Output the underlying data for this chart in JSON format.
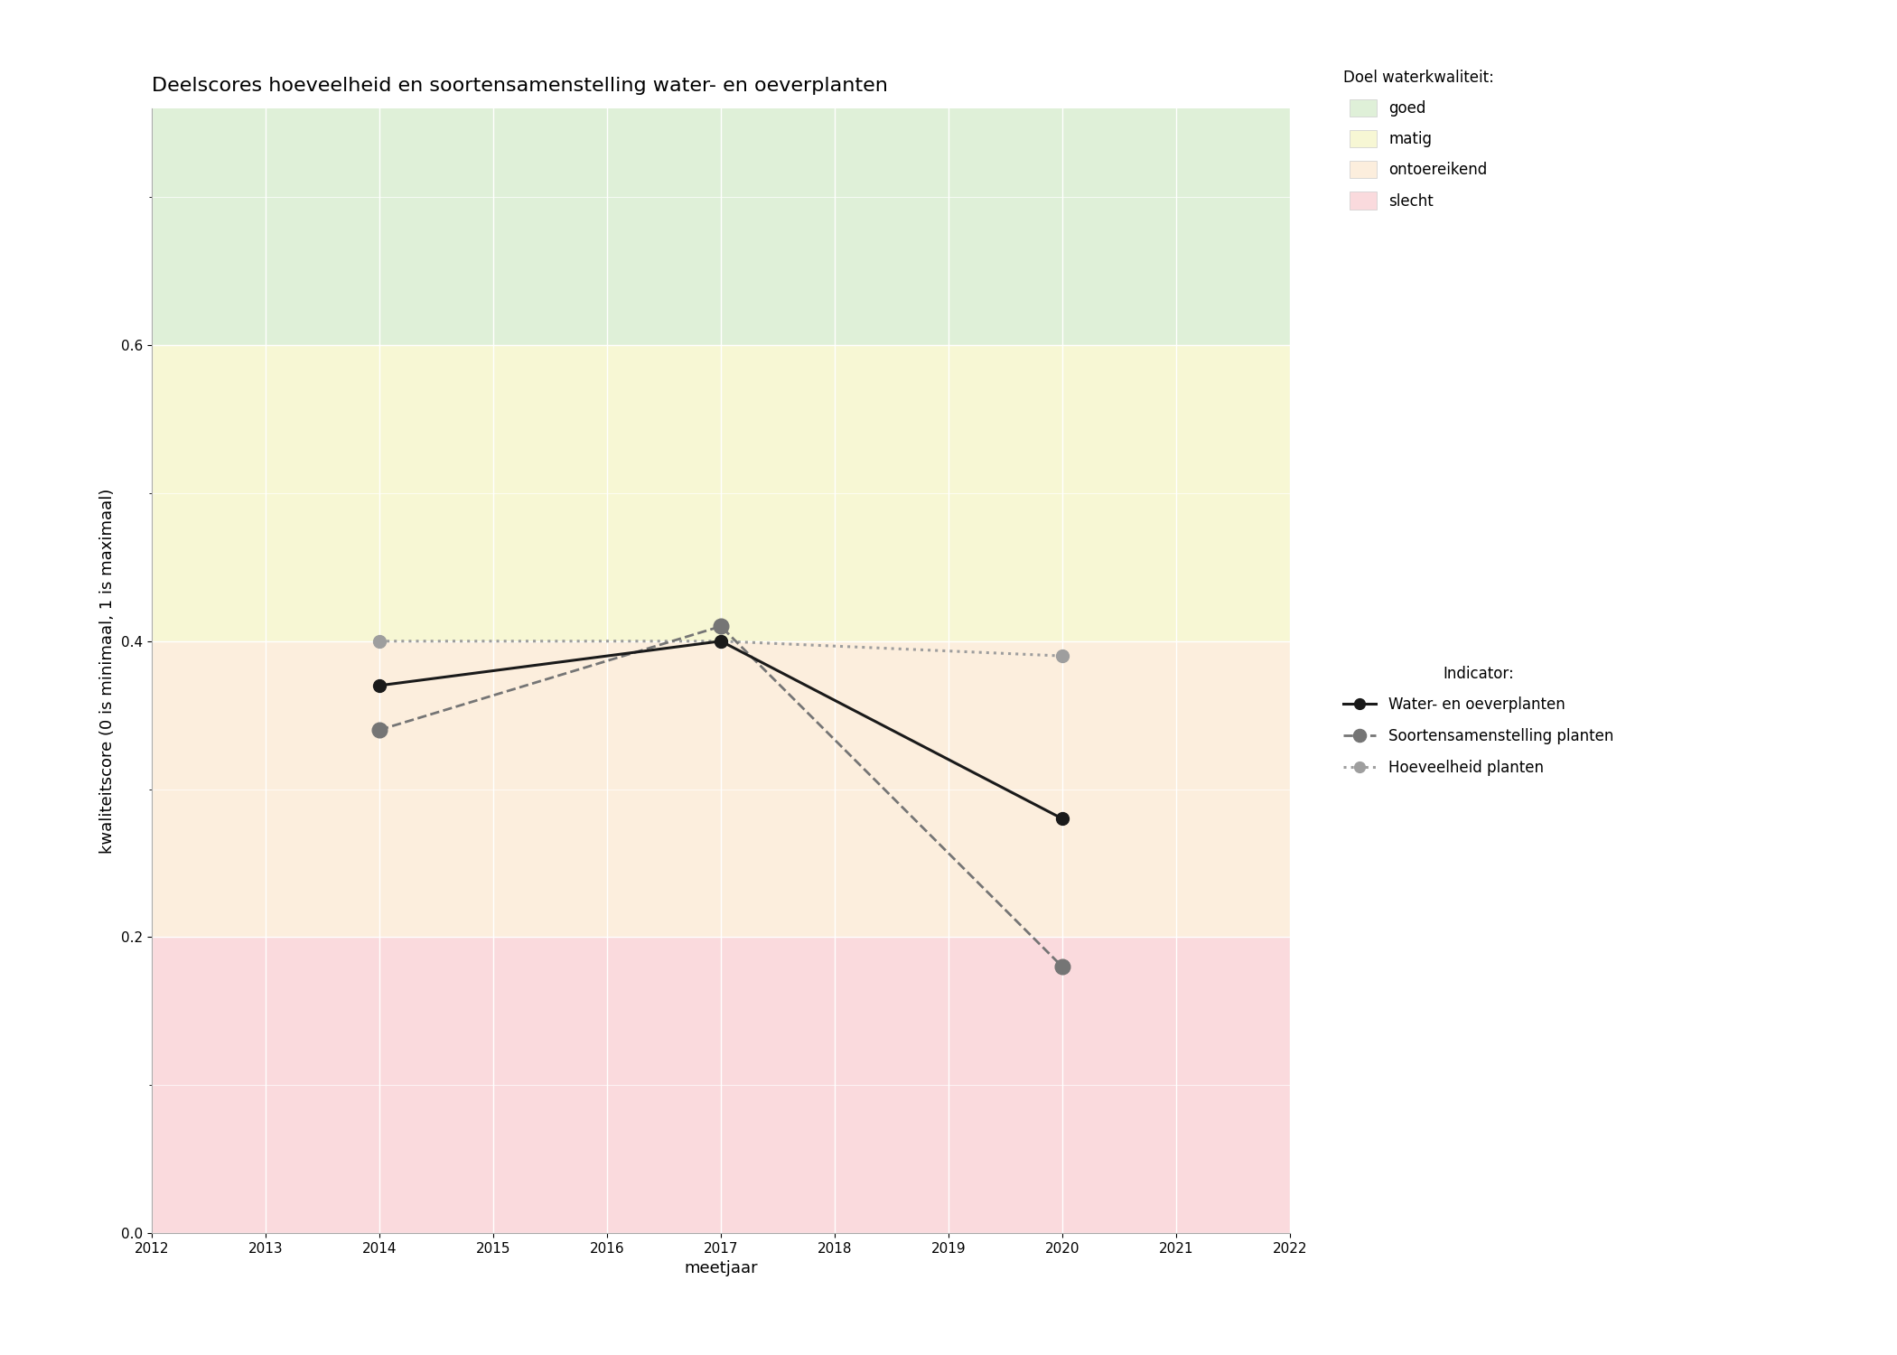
{
  "title": "Deelscores hoeveelheid en soortensamenstelling water- en oeverplanten",
  "xlabel": "meetjaar",
  "ylabel": "kwaliteitscore (0 is minimaal, 1 is maximaal)",
  "xlim": [
    2012,
    2022
  ],
  "ylim": [
    0.0,
    0.76
  ],
  "xticks": [
    2012,
    2013,
    2014,
    2015,
    2016,
    2017,
    2018,
    2019,
    2020,
    2021,
    2022
  ],
  "yticks": [
    0.0,
    0.2,
    0.4,
    0.6
  ],
  "zones": [
    {
      "label": "goed",
      "ymin": 0.6,
      "ymax": 0.76,
      "color": "#dff0d8"
    },
    {
      "label": "matig",
      "ymin": 0.4,
      "ymax": 0.6,
      "color": "#f7f7d4"
    },
    {
      "label": "ontoereikend",
      "ymin": 0.2,
      "ymax": 0.4,
      "color": "#fceedd"
    },
    {
      "label": "slecht",
      "ymin": 0.0,
      "ymax": 0.2,
      "color": "#fadadd"
    }
  ],
  "series": [
    {
      "label": "Water- en oeverplanten",
      "x": [
        2014,
        2017,
        2020
      ],
      "y": [
        0.37,
        0.4,
        0.28
      ],
      "color": "#1a1a1a",
      "linestyle": "solid",
      "linewidth": 2.2,
      "marker": "o",
      "markersize": 10,
      "zorder": 5
    },
    {
      "label": "Soortensamenstelling planten",
      "x": [
        2014,
        2017,
        2020
      ],
      "y": [
        0.34,
        0.41,
        0.18
      ],
      "color": "#757575",
      "linestyle": "dashed",
      "linewidth": 2.0,
      "marker": "o",
      "markersize": 12,
      "zorder": 4
    },
    {
      "label": "Hoeveelheid planten",
      "x": [
        2014,
        2017,
        2020
      ],
      "y": [
        0.4,
        0.4,
        0.39
      ],
      "color": "#9e9e9e",
      "linestyle": "dotted",
      "linewidth": 2.2,
      "marker": "o",
      "markersize": 10,
      "zorder": 3
    }
  ],
  "legend_title_doel": "Doel waterkwaliteit:",
  "legend_title_indicator": "Indicator:",
  "title_fontsize": 16,
  "axis_label_fontsize": 13,
  "tick_fontsize": 11,
  "legend_fontsize": 12
}
